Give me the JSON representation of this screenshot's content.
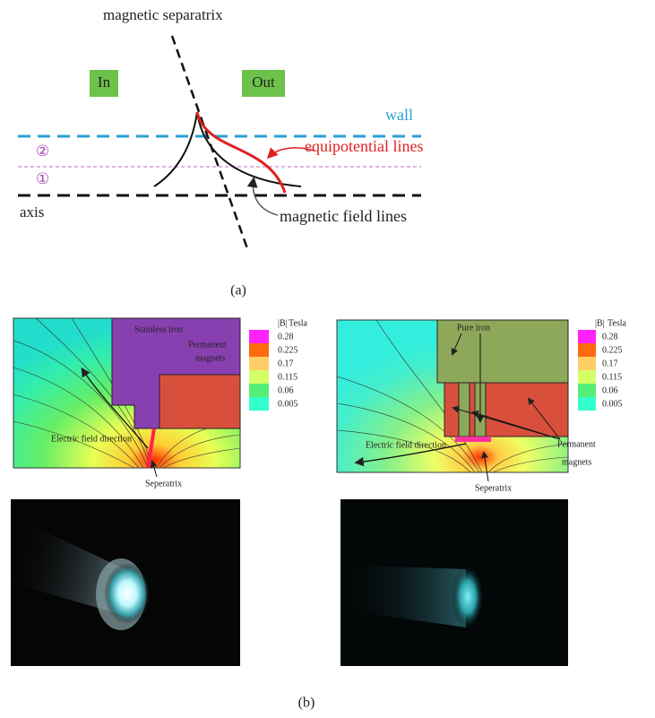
{
  "panel_a": {
    "separatrix_label": "magnetic separatrix",
    "in_label": "In",
    "out_label": "Out",
    "wall_label": "wall",
    "region_2": "②",
    "region_1": "①",
    "equipotential_label": "equipotential lines",
    "axis_label": "axis",
    "field_lines_label": "magnetic field lines",
    "caption": "(a)"
  },
  "panel_b": {
    "left": {
      "iron_label": "Stainless iron",
      "magnet_label_1": "Permanent",
      "magnet_label_2": "magnets",
      "field_direction_label": "Electric field direction",
      "separatrix_label": "Seperatrix",
      "colorbar": {
        "title": "|B|",
        "unit": "Tesla",
        "levels": [
          "0.28",
          "0.225",
          "0.17",
          "0.115",
          "0.06",
          "0.005"
        ]
      }
    },
    "right": {
      "iron_label": "Pure iron",
      "magnet_label_1": "Permanent",
      "magnet_label_2": "magnets",
      "field_direction_label": "Electric field direction",
      "separatrix_label": "Seperatrix",
      "colorbar": {
        "title": "|B|",
        "unit": "Tesla",
        "levels": [
          "0.28",
          "0.225",
          "0.17",
          "0.115",
          "0.06",
          "0.005"
        ]
      }
    },
    "caption": "(b)"
  }
}
